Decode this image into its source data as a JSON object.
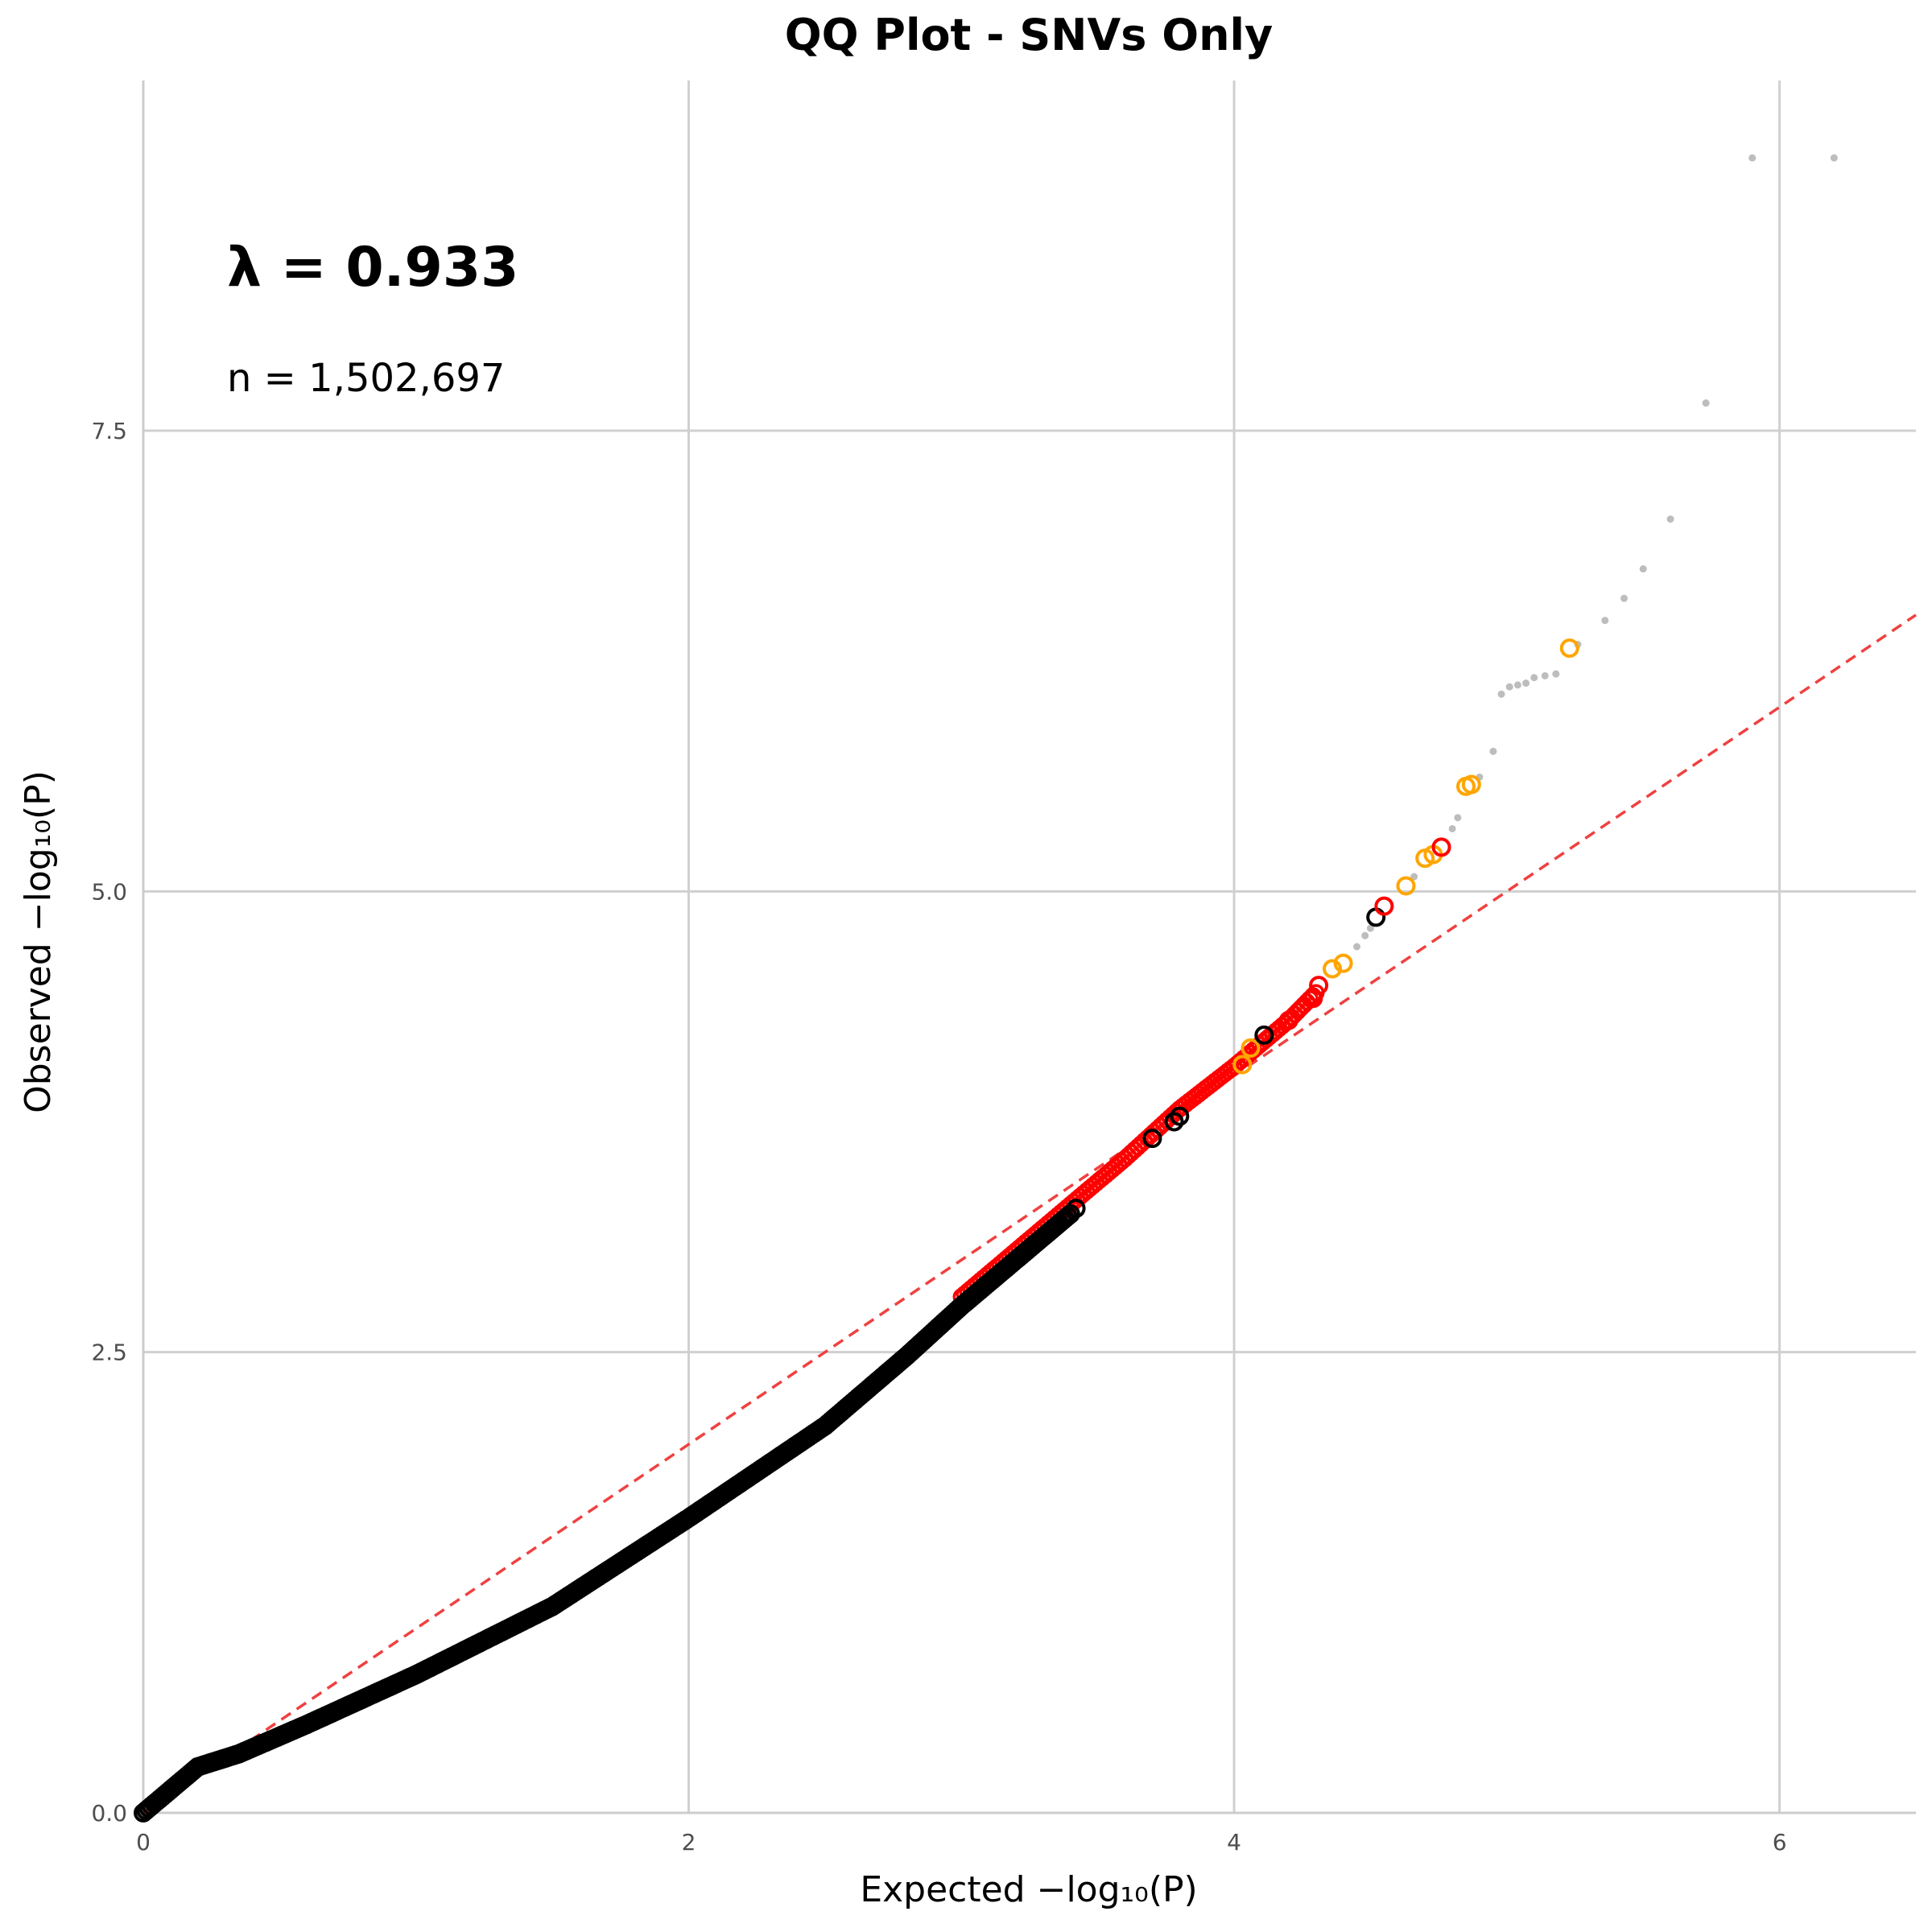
{
  "chart_data": {
    "type": "scatter",
    "title": "QQ Plot - SNVs Only",
    "xlabel_prefix": "Expected ",
    "ylabel_prefix": "Observed ",
    "axis_label_math": "−log₁₀(P)",
    "xlim": [
      0,
      6.5
    ],
    "ylim": [
      0,
      9.4
    ],
    "x_ticks": [
      "0",
      "2",
      "4",
      "6"
    ],
    "x_tick_values": [
      0,
      2,
      4,
      6
    ],
    "y_ticks": [
      "0.0",
      "2.5",
      "5.0",
      "7.5"
    ],
    "y_tick_values": [
      0,
      2.5,
      5,
      7.5
    ],
    "grid": "major gridlines on",
    "lambda_label": "λ = 0.933",
    "n_label": "n = 1,502,697",
    "reference_line": {
      "style": "dashed",
      "color": "#f04040",
      "slope": 1,
      "intercept": 0
    },
    "bulk_curve": {
      "color": "#000000",
      "points": [
        [
          0,
          0
        ],
        [
          0.2,
          0.25
        ],
        [
          0.35,
          0.32
        ],
        [
          0.6,
          0.48
        ],
        [
          1.0,
          0.75
        ],
        [
          1.5,
          1.12
        ],
        [
          2.0,
          1.6
        ],
        [
          2.5,
          2.1
        ],
        [
          2.8,
          2.48
        ],
        [
          3.0,
          2.75
        ],
        [
          3.2,
          3.0
        ],
        [
          3.4,
          3.25
        ]
      ]
    },
    "red_segment": {
      "color": "#ff0000",
      "x_range": [
        3.0,
        4.3
      ],
      "points": [
        [
          3.0,
          2.8
        ],
        [
          3.4,
          3.3
        ],
        [
          3.6,
          3.55
        ],
        [
          3.8,
          3.82
        ],
        [
          4.0,
          4.05
        ],
        [
          4.2,
          4.3
        ],
        [
          4.3,
          4.45
        ]
      ]
    },
    "highlighted_points": [
      {
        "x": 3.42,
        "y": 3.28,
        "color": "#000000"
      },
      {
        "x": 3.7,
        "y": 3.66,
        "color": "#000000"
      },
      {
        "x": 3.78,
        "y": 3.75,
        "color": "#000000"
      },
      {
        "x": 3.8,
        "y": 3.78,
        "color": "#000000"
      },
      {
        "x": 4.03,
        "y": 4.06,
        "color": "#ffa500"
      },
      {
        "x": 4.06,
        "y": 4.15,
        "color": "#ffa500"
      },
      {
        "x": 4.11,
        "y": 4.22,
        "color": "#000000"
      },
      {
        "x": 4.2,
        "y": 4.3,
        "color": "#ff0000"
      },
      {
        "x": 4.29,
        "y": 4.42,
        "color": "#ff0000"
      },
      {
        "x": 4.31,
        "y": 4.49,
        "color": "#ff0000"
      },
      {
        "x": 4.36,
        "y": 4.58,
        "color": "#ffa500"
      },
      {
        "x": 4.4,
        "y": 4.61,
        "color": "#ffa500"
      },
      {
        "x": 4.52,
        "y": 4.86,
        "color": "#000000"
      },
      {
        "x": 4.55,
        "y": 4.92,
        "color": "#ff0000"
      },
      {
        "x": 4.63,
        "y": 5.03,
        "color": "#ffa500"
      },
      {
        "x": 4.7,
        "y": 5.18,
        "color": "#ffa500"
      },
      {
        "x": 4.73,
        "y": 5.2,
        "color": "#ffa500"
      },
      {
        "x": 4.76,
        "y": 5.24,
        "color": "#ff0000"
      },
      {
        "x": 4.85,
        "y": 5.57,
        "color": "#ffa500"
      },
      {
        "x": 4.87,
        "y": 5.58,
        "color": "#ffa500"
      },
      {
        "x": 5.23,
        "y": 6.32,
        "color": "#ffa500"
      }
    ],
    "grey_points": [
      {
        "x": 4.45,
        "y": 4.7
      },
      {
        "x": 4.48,
        "y": 4.76
      },
      {
        "x": 4.5,
        "y": 4.8
      },
      {
        "x": 4.66,
        "y": 5.08
      },
      {
        "x": 4.8,
        "y": 5.34
      },
      {
        "x": 4.82,
        "y": 5.4
      },
      {
        "x": 4.9,
        "y": 5.62
      },
      {
        "x": 4.95,
        "y": 5.76
      },
      {
        "x": 4.98,
        "y": 6.07
      },
      {
        "x": 5.01,
        "y": 6.11
      },
      {
        "x": 5.04,
        "y": 6.12
      },
      {
        "x": 5.07,
        "y": 6.13
      },
      {
        "x": 5.1,
        "y": 6.16
      },
      {
        "x": 5.14,
        "y": 6.17
      },
      {
        "x": 5.18,
        "y": 6.18
      },
      {
        "x": 5.26,
        "y": 6.34
      },
      {
        "x": 5.36,
        "y": 6.47
      },
      {
        "x": 5.43,
        "y": 6.59
      },
      {
        "x": 5.5,
        "y": 6.75
      },
      {
        "x": 5.6,
        "y": 7.02
      },
      {
        "x": 5.73,
        "y": 7.65
      },
      {
        "x": 5.9,
        "y": 8.98
      },
      {
        "x": 6.2,
        "y": 8.98
      }
    ]
  }
}
